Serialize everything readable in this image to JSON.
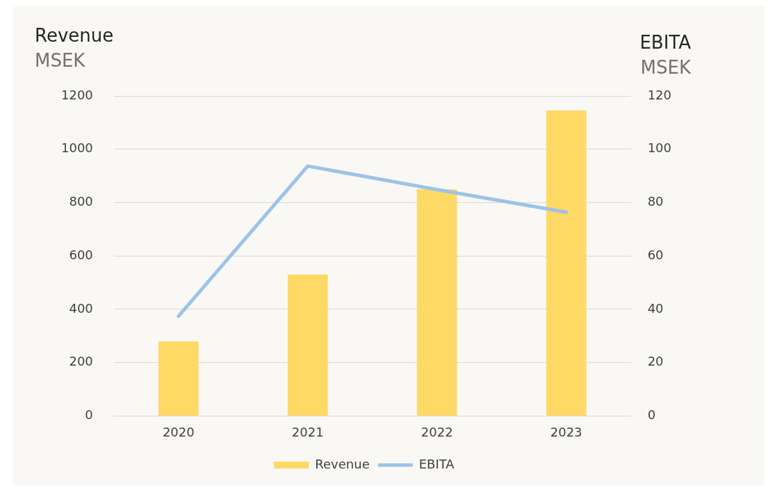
{
  "chart_data": {
    "type": "bar",
    "ylabel": "Revenue",
    "y2label": "EBITA",
    "annotations": [
      "MSEK",
      "MSEK"
    ],
    "categories": [
      "2020",
      "2021",
      "2022",
      "2023"
    ],
    "series": [
      {
        "name": "Revenue",
        "color": "#ffd966",
        "values": [
          280,
          530,
          850,
          1145
        ]
      },
      {
        "name": "EBITA",
        "type": "line",
        "axis": "y2",
        "color": "#9dc3e6",
        "values": [
          37.4,
          93.7,
          84.9,
          76.4
        ]
      }
    ],
    "ylim": [
      0,
      1200
    ],
    "yticks": [
      0,
      200,
      400,
      600,
      800,
      1000,
      1200
    ],
    "y2lim": [
      0,
      120
    ],
    "y2ticks": [
      0,
      20,
      40,
      60,
      80,
      100,
      120
    ],
    "grid": "y",
    "legend": "bottom"
  }
}
